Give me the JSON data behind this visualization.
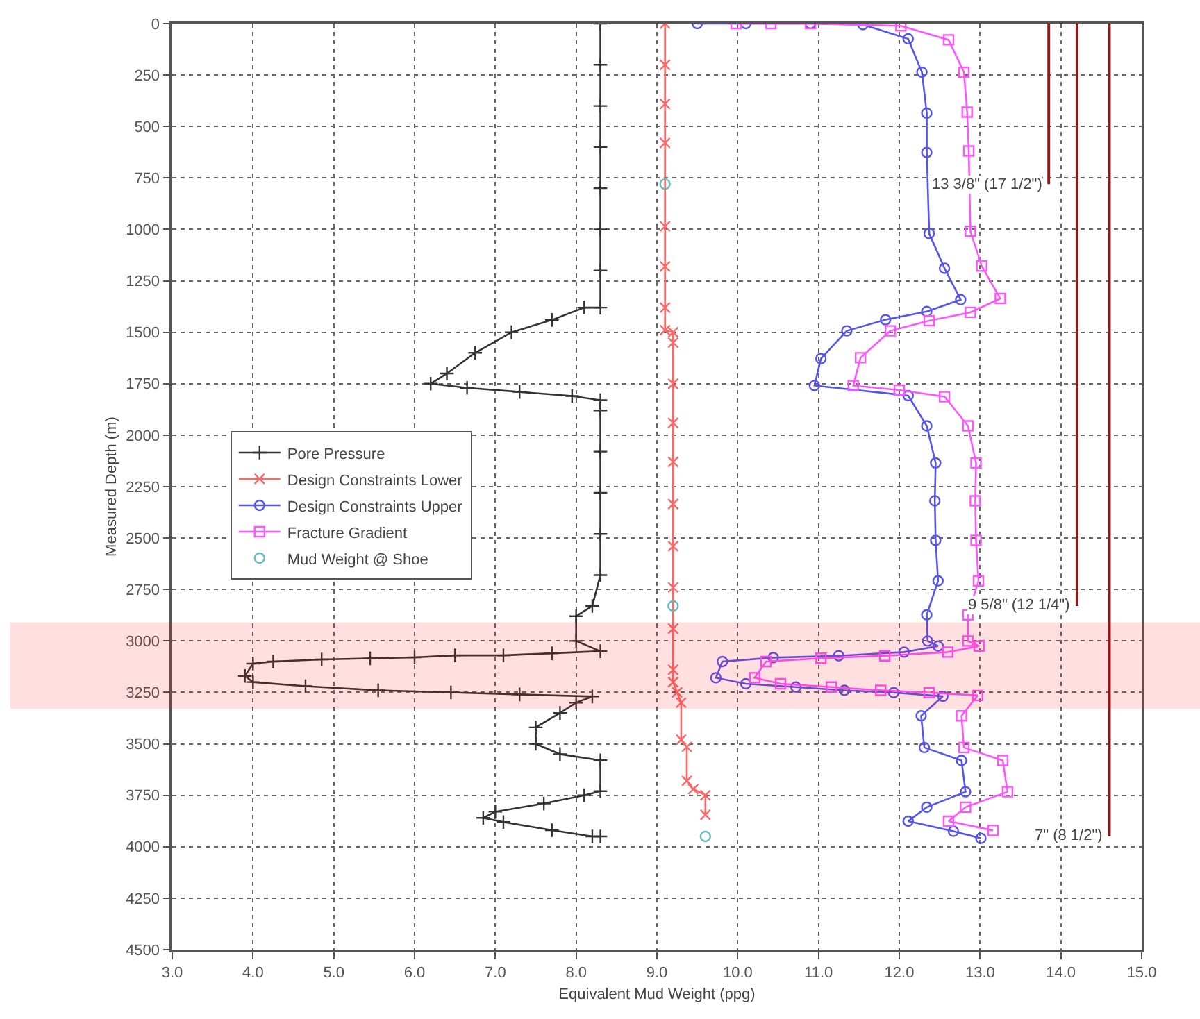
{
  "chart_data": {
    "type": "line",
    "xlabel": "Equivalent Mud Weight (ppg)",
    "ylabel": "Measured Depth (m)",
    "xlim": [
      3.0,
      15.0
    ],
    "ylim": [
      4500,
      0
    ],
    "xticks": [
      {
        "value": 3,
        "label": "3.0"
      },
      {
        "value": 4,
        "label": "4.0"
      },
      {
        "value": 5,
        "label": "5.0"
      },
      {
        "value": 6,
        "label": "6.0"
      },
      {
        "value": 7,
        "label": "7.0"
      },
      {
        "value": 8,
        "label": "8.0"
      },
      {
        "value": 9,
        "label": "9.0"
      },
      {
        "value": 10,
        "label": "10.0"
      },
      {
        "value": 11,
        "label": "11.0"
      },
      {
        "value": 12,
        "label": "12.0"
      },
      {
        "value": 13,
        "label": "13.0"
      },
      {
        "value": 14,
        "label": "14.0"
      },
      {
        "value": 15,
        "label": "15.0"
      }
    ],
    "yticks": [
      0,
      250,
      500,
      750,
      1000,
      1250,
      1500,
      1750,
      2000,
      2250,
      2500,
      2750,
      3000,
      3250,
      3500,
      3750,
      4000,
      4250,
      4500
    ],
    "grid": true,
    "legend": "left",
    "line_style": "solid",
    "series": [
      {
        "name": "Pore Pressure",
        "color": "#333333",
        "marker": "cross",
        "x": [
          8.3,
          8.3,
          8.3,
          8.3,
          8.3,
          8.3,
          8.3,
          8.3,
          8.1,
          7.7,
          7.2,
          6.75,
          6.4,
          6.2,
          6.65,
          7.3,
          7.95,
          8.3,
          8.3,
          8.3,
          8.3,
          8.3,
          8.3,
          8.2,
          8.0,
          8.0,
          8.3,
          7.7,
          7.1,
          6.5,
          6.0,
          5.45,
          4.85,
          4.25,
          4.0,
          3.9,
          4.0,
          4.65,
          5.55,
          6.45,
          7.3,
          8.2,
          8.0,
          7.8,
          7.5,
          7.5,
          7.8,
          8.3,
          8.3,
          8.1,
          7.6,
          7.0,
          6.85,
          7.1,
          7.7,
          8.2,
          8.3
        ],
        "values": [
          0,
          200,
          400,
          600,
          800,
          1000,
          1200,
          1380,
          1380,
          1440,
          1500,
          1600,
          1700,
          1750,
          1770,
          1790,
          1810,
          1830,
          1880,
          2080,
          2280,
          2480,
          2680,
          2830,
          2880,
          3000,
          3050,
          3060,
          3070,
          3070,
          3080,
          3085,
          3090,
          3100,
          3110,
          3170,
          3200,
          3220,
          3240,
          3250,
          3260,
          3270,
          3300,
          3350,
          3420,
          3500,
          3550,
          3580,
          3730,
          3750,
          3790,
          3830,
          3860,
          3880,
          3920,
          3950,
          3950
        ]
      },
      {
        "name": "Design Constraints Lower",
        "color": "#ff6666",
        "marker": "x",
        "x": [
          9.1,
          9.1,
          9.1,
          9.1,
          9.1,
          9.1,
          9.1,
          9.1,
          9.2,
          9.2,
          9.2,
          9.2,
          9.2,
          9.2,
          9.2,
          9.2,
          9.2,
          9.2,
          9.2,
          9.25,
          9.3,
          9.3,
          9.37,
          9.37,
          9.45,
          9.6,
          9.6
        ],
        "values": [
          0,
          200,
          390,
          580,
          985,
          1180,
          1380,
          1490,
          1500,
          1550,
          1750,
          1940,
          2130,
          2335,
          2540,
          2740,
          2940,
          3140,
          3200,
          3250,
          3300,
          3480,
          3515,
          3680,
          3720,
          3750,
          3845
        ]
      },
      {
        "name": "Design Constraints Upper",
        "color": "#5555ee",
        "marker": "circle",
        "x": [
          9.5,
          10.1,
          10.9,
          11.55,
          12.11,
          12.28,
          12.34,
          12.34,
          12.37,
          12.56,
          12.76,
          12.34,
          11.83,
          11.35,
          11.03,
          10.95,
          12.11,
          12.34,
          12.45,
          12.44,
          12.45,
          12.48,
          12.34,
          12.35,
          12.48,
          12.06,
          11.25,
          10.44,
          9.81,
          9.73,
          10.1,
          10.72,
          11.32,
          11.93,
          12.54,
          12.27,
          12.31,
          12.77,
          12.82,
          12.34,
          12.11,
          12.67,
          13.01
        ],
        "values": [
          0,
          0,
          0,
          5,
          74,
          236,
          435,
          626,
          1020,
          1189,
          1342,
          1399,
          1439,
          1493,
          1628,
          1759,
          1808,
          1955,
          2135,
          2319,
          2511,
          2708,
          2873,
          3000,
          3025,
          3054,
          3072,
          3081,
          3100,
          3179,
          3208,
          3224,
          3240,
          3251,
          3269,
          3364,
          3518,
          3581,
          3733,
          3808,
          3876,
          3925,
          3959
        ]
      },
      {
        "name": "Fracture Gradient",
        "color": "#ff55ff",
        "marker": "square",
        "x": [
          9.98,
          10.41,
          10.9,
          12.02,
          12.61,
          12.8,
          12.84,
          12.86,
          12.88,
          13.02,
          13.25,
          12.88,
          12.37,
          11.89,
          11.52,
          11.43,
          12.0,
          12.56,
          12.85,
          12.95,
          12.94,
          12.95,
          12.98,
          12.85,
          12.85,
          12.99,
          12.6,
          11.82,
          11.03,
          10.35,
          10.21,
          10.53,
          11.16,
          11.77,
          12.37,
          12.97,
          12.77,
          12.8,
          13.28,
          13.34,
          12.82,
          12.61,
          13.16
        ],
        "values": [
          0,
          0,
          0,
          11,
          79,
          236,
          430,
          619,
          1009,
          1178,
          1336,
          1403,
          1444,
          1493,
          1624,
          1759,
          1781,
          1813,
          1955,
          2135,
          2319,
          2511,
          2708,
          2873,
          3000,
          3025,
          3054,
          3072,
          3084,
          3100,
          3179,
          3208,
          3224,
          3240,
          3251,
          3265,
          3364,
          3518,
          3581,
          3733,
          3808,
          3876,
          3921
        ]
      },
      {
        "name": "Mud Weight @ Shoe",
        "type": "scatter",
        "color": "#66bbbb",
        "marker": "circle",
        "x": [
          9.1,
          9.2,
          9.6
        ],
        "values": [
          780,
          2830,
          3950
        ]
      },
      {
        "color": "#8b1a1a",
        "marker": "none",
        "x": [
          13.85,
          13.85
        ],
        "values": [
          0,
          780
        ]
      },
      {
        "color": "#8b1a1a",
        "marker": "none",
        "x": [
          14.2,
          14.2
        ],
        "values": [
          0,
          2830
        ]
      },
      {
        "color": "#8b1a1a",
        "marker": "none",
        "x": [
          14.6,
          14.6
        ],
        "values": [
          0,
          3950
        ]
      }
    ],
    "annotations": [
      {
        "text": "13 3/8\" (17 1/2\")",
        "x": 13.85,
        "y": 780
      },
      {
        "text": "9 5/8\" (12 1/4\")",
        "x": 14.2,
        "y": 2830
      },
      {
        "text": "7\" (8 1/2\")",
        "x": 14.6,
        "y": 3950
      }
    ],
    "bands": [
      {
        "axis": "y",
        "from": 2920,
        "to": 3320,
        "color": "#ff0000"
      }
    ]
  }
}
